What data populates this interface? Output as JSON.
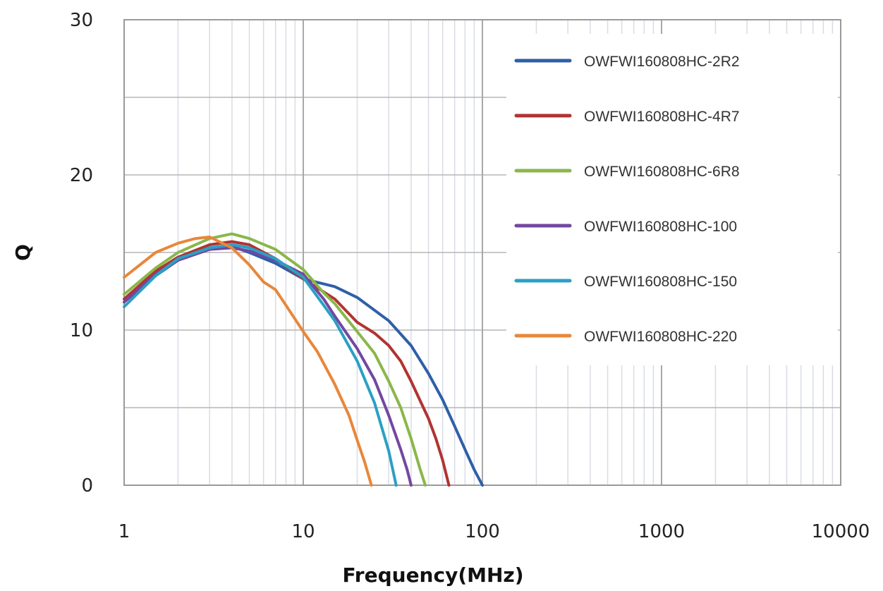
{
  "chart_data": {
    "type": "line",
    "title": "",
    "xlabel": "Frequency(MHz)",
    "ylabel": "Q",
    "x_scale": "log",
    "xlim": [
      1,
      10000
    ],
    "ylim": [
      0,
      30
    ],
    "x_ticks": [
      "1",
      "10",
      "100",
      "1000",
      "10000"
    ],
    "y_ticks": [
      "0",
      "10",
      "20",
      "30"
    ],
    "grid": true,
    "legend_position": "top-right",
    "series": [
      {
        "name": "OWFWI160808HC-2R2",
        "color": "#2f5fa8",
        "x": [
          1,
          1.5,
          2,
          3,
          4,
          5,
          7,
          10,
          15,
          20,
          30,
          40,
          50,
          60,
          70,
          80,
          90,
          100
        ],
        "y": [
          11.8,
          13.5,
          14.5,
          15.3,
          15.4,
          15.0,
          14.3,
          13.3,
          12.8,
          12.1,
          10.6,
          9.0,
          7.2,
          5.5,
          3.8,
          2.3,
          1.0,
          0
        ]
      },
      {
        "name": "OWFWI160808HC-4R7",
        "color": "#b03432",
        "x": [
          1,
          1.5,
          2,
          3,
          4,
          5,
          7,
          10,
          15,
          20,
          25,
          30,
          35,
          40,
          50,
          55,
          60,
          65
        ],
        "y": [
          12.0,
          13.8,
          14.7,
          15.5,
          15.7,
          15.5,
          14.6,
          13.3,
          12.0,
          10.5,
          9.8,
          9.0,
          8.0,
          6.7,
          4.3,
          3.0,
          1.6,
          0
        ]
      },
      {
        "name": "OWFWI160808HC-6R8",
        "color": "#8ab74a",
        "x": [
          1,
          1.5,
          2,
          3,
          4,
          5,
          7,
          10,
          13,
          15,
          20,
          25,
          30,
          35,
          40,
          45,
          48
        ],
        "y": [
          12.3,
          14.0,
          15.0,
          15.9,
          16.2,
          15.9,
          15.2,
          13.9,
          12.4,
          11.7,
          9.9,
          8.5,
          6.7,
          5.0,
          3.0,
          1.0,
          0
        ]
      },
      {
        "name": "OWFWI160808HC-100",
        "color": "#7347a0",
        "x": [
          1,
          1.5,
          2,
          3,
          4,
          5,
          7,
          10,
          13,
          15,
          20,
          25,
          30,
          35,
          38,
          40
        ],
        "y": [
          11.8,
          13.6,
          14.5,
          15.2,
          15.3,
          15.1,
          14.5,
          13.6,
          12.0,
          10.9,
          8.8,
          6.8,
          4.5,
          2.3,
          1.0,
          0
        ]
      },
      {
        "name": "OWFWI160808HC-150",
        "color": "#2aa0c4",
        "x": [
          1,
          1.5,
          2,
          3,
          4,
          5,
          7,
          10,
          13,
          15,
          20,
          25,
          30,
          33
        ],
        "y": [
          11.5,
          13.5,
          14.6,
          15.3,
          15.5,
          15.3,
          14.6,
          13.4,
          11.6,
          10.6,
          8.0,
          5.3,
          2.2,
          0
        ]
      },
      {
        "name": "OWFWI160808HC-220",
        "color": "#e8873a",
        "x": [
          1,
          1.5,
          2,
          2.5,
          3,
          4,
          5,
          6,
          7,
          8,
          10,
          12,
          15,
          18,
          20,
          22,
          24
        ],
        "y": [
          13.4,
          15.0,
          15.6,
          15.9,
          16.0,
          15.3,
          14.2,
          13.1,
          12.6,
          11.6,
          9.9,
          8.6,
          6.5,
          4.5,
          2.9,
          1.5,
          0
        ]
      }
    ]
  }
}
